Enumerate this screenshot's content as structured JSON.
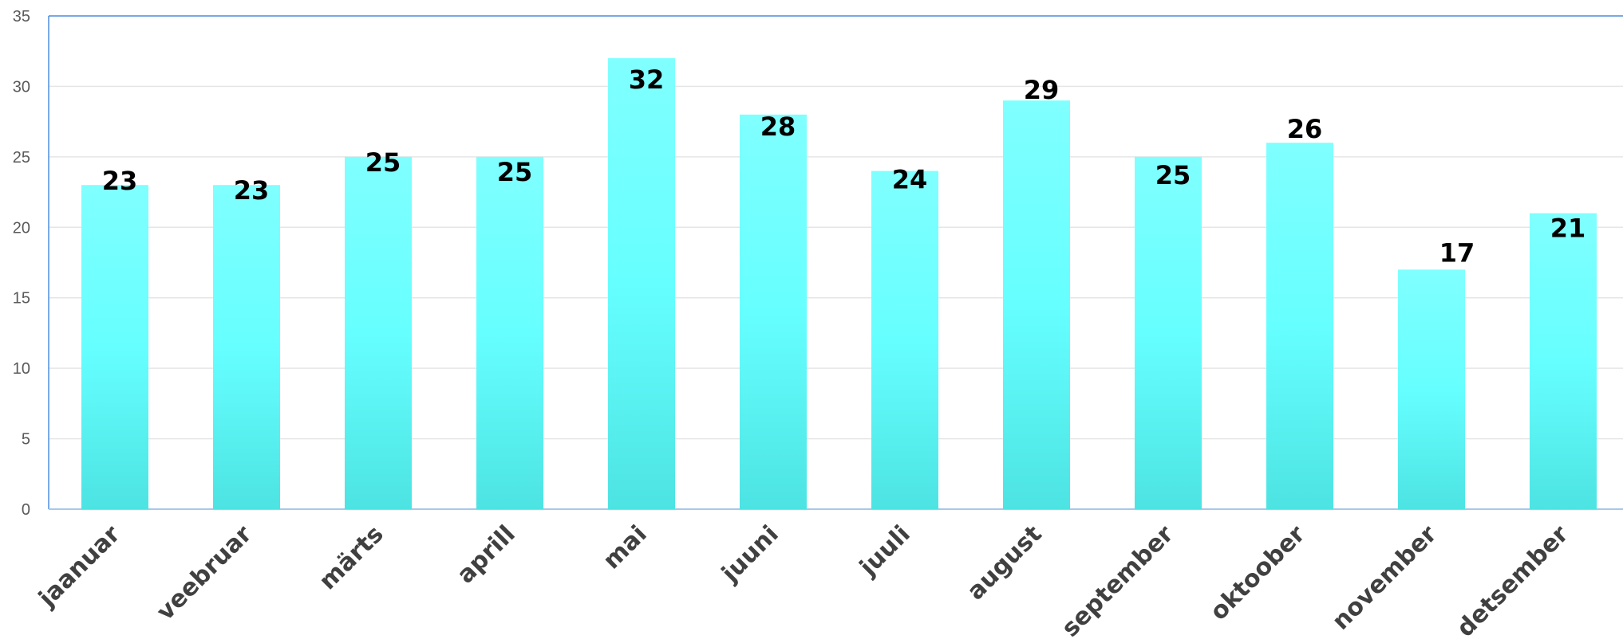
{
  "chart_data": {
    "type": "bar",
    "categories": [
      "jaanuar",
      "veebruar",
      "märts",
      "aprill",
      "mai",
      "juuni",
      "juuli",
      "august",
      "september",
      "oktoober",
      "november",
      "detsember"
    ],
    "values": [
      23,
      23,
      25,
      25,
      32,
      28,
      24,
      29,
      25,
      26,
      17,
      21
    ],
    "yticks": [
      "0",
      "5",
      "10",
      "15",
      "20",
      "25",
      "30",
      "35"
    ],
    "ylim": [
      0,
      35
    ],
    "grid": true,
    "legend": "none",
    "title": "",
    "xlabel": "",
    "ylabel": "",
    "colors": {
      "bar_top": "#80FFFF",
      "bar_mid": "#66FFFF",
      "bar_bottom": "#4DE3E3",
      "gridline": "#E6E6E6",
      "axis": "#A8C8EC",
      "frame": "#4F8FE0"
    }
  }
}
